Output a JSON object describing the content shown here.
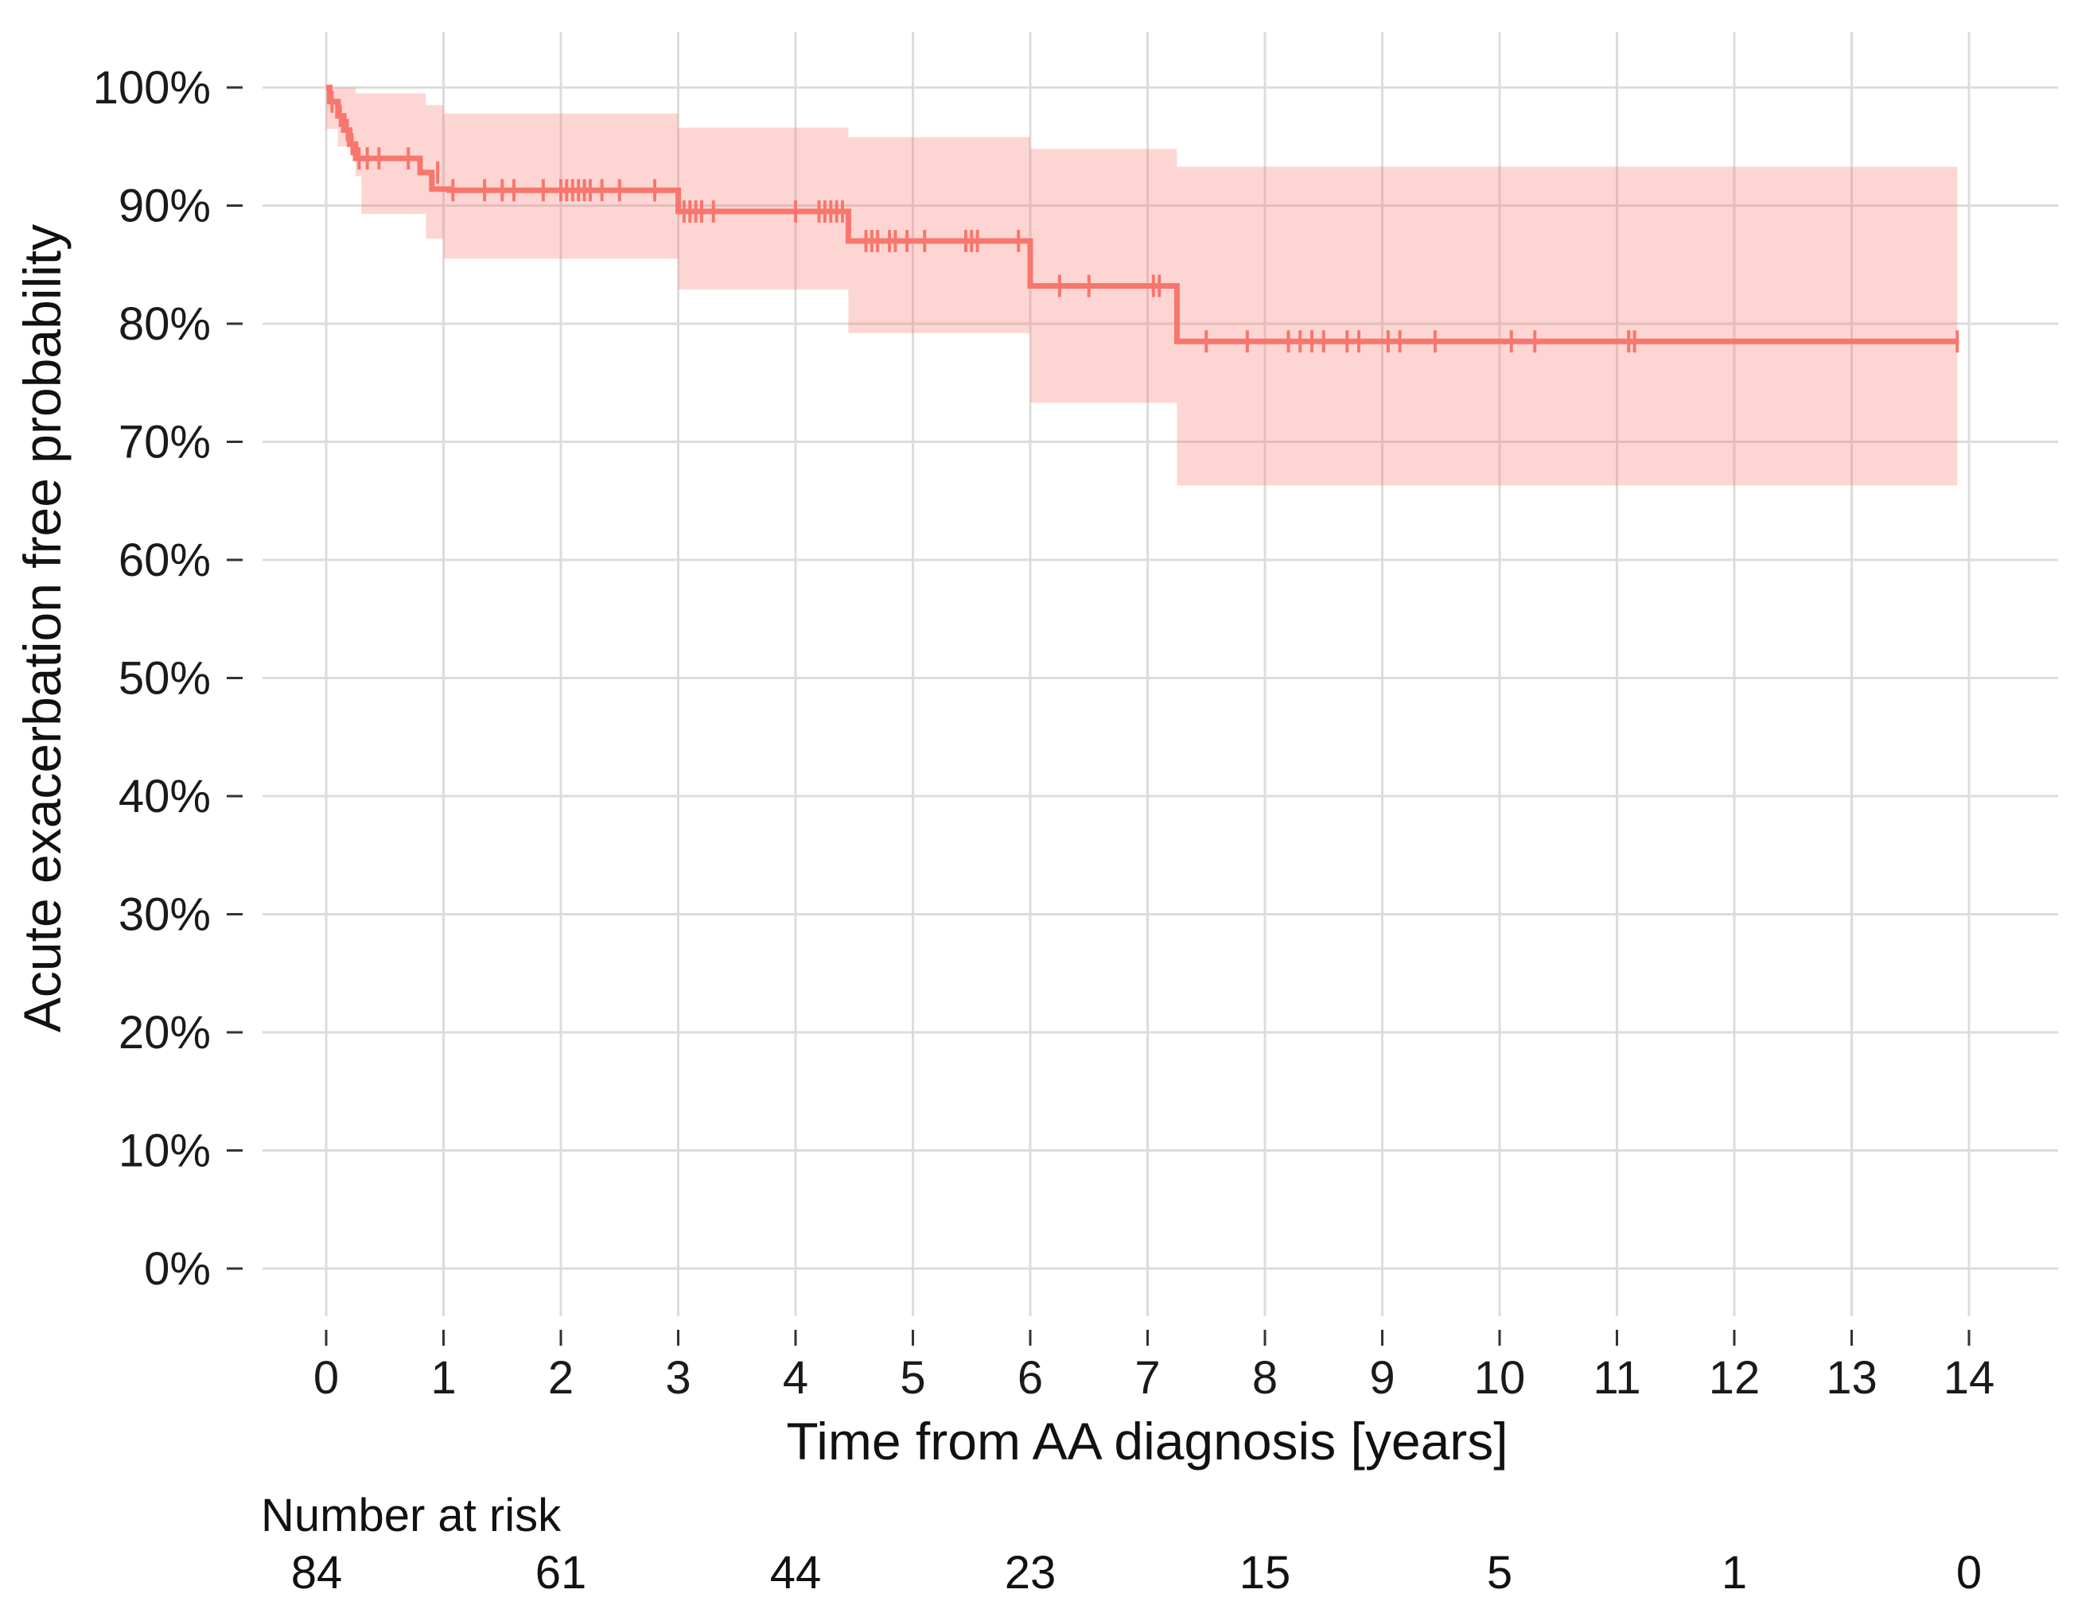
{
  "chart_data": {
    "type": "line",
    "subtype": "kaplan-meier",
    "title": "",
    "xlabel": "Time from AA diagnosis [years]",
    "ylabel": "Acute exacerbation free probability",
    "xlim": [
      0,
      14
    ],
    "ylim": [
      0,
      100
    ],
    "x_ticks": [
      0,
      1,
      2,
      3,
      4,
      5,
      6,
      7,
      8,
      9,
      10,
      11,
      12,
      13,
      14
    ],
    "x_tick_labels": [
      "0",
      "1",
      "2",
      "3",
      "4",
      "5",
      "6",
      "7",
      "8",
      "9",
      "10",
      "11",
      "12",
      "13",
      "14"
    ],
    "y_ticks": [
      0,
      10,
      20,
      30,
      40,
      50,
      60,
      70,
      80,
      90,
      100
    ],
    "y_tick_labels": [
      "0%",
      "10%",
      "20%",
      "30%",
      "40%",
      "50%",
      "60%",
      "70%",
      "80%",
      "90%",
      "100%"
    ],
    "grid": true,
    "series": [
      {
        "name": "Acute exacerbation free probability",
        "color": "#f8766d",
        "ci_color": "#f8766d",
        "step_x": [
          0,
          0.03,
          0.1,
          0.15,
          0.2,
          0.25,
          0.3,
          0.8,
          0.9,
          1.05,
          3.0,
          4.45,
          6.0,
          7.25,
          13.9
        ],
        "step_y": [
          100,
          98.8,
          97.6,
          96.4,
          95.2,
          94.0,
          94.0,
          92.8,
          91.4,
          91.3,
          89.5,
          87.0,
          83.2,
          78.5,
          78.5
        ],
        "ci_x": [
          0,
          0.1,
          0.25,
          0.3,
          0.85,
          1.0,
          3.0,
          4.45,
          6.0,
          7.25,
          13.9
        ],
        "ci_upper": [
          100,
          100,
          99.5,
          99.5,
          98.5,
          97.8,
          96.6,
          95.8,
          94.8,
          93.3,
          93.3
        ],
        "ci_lower": [
          96.5,
          95,
          92.5,
          89.3,
          87.2,
          85.5,
          82.9,
          79.2,
          73.3,
          66.3,
          66.3
        ],
        "censor_x": [
          0.05,
          0.12,
          0.18,
          0.22,
          0.28,
          0.35,
          0.45,
          0.7,
          0.95,
          1.08,
          1.35,
          1.5,
          1.6,
          1.85,
          2.0,
          2.05,
          2.1,
          2.15,
          2.2,
          2.25,
          2.35,
          2.5,
          2.8,
          3.05,
          3.1,
          3.15,
          3.2,
          3.3,
          4.0,
          4.2,
          4.25,
          4.3,
          4.35,
          4.4,
          4.6,
          4.65,
          4.7,
          4.8,
          4.85,
          4.95,
          5.1,
          5.45,
          5.5,
          5.55,
          5.9,
          6.25,
          6.5,
          7.05,
          7.1,
          7.5,
          7.85,
          8.2,
          8.3,
          8.4,
          8.5,
          8.7,
          8.8,
          9.05,
          9.15,
          9.45,
          10.1,
          10.3,
          11.1,
          11.15,
          13.9
        ],
        "censor_y": [
          98.8,
          97.6,
          96.4,
          95.2,
          94.0,
          94.0,
          94.0,
          94.0,
          92.8,
          91.3,
          91.3,
          91.3,
          91.3,
          91.3,
          91.3,
          91.3,
          91.3,
          91.3,
          91.3,
          91.3,
          91.3,
          91.3,
          91.3,
          89.5,
          89.5,
          89.5,
          89.5,
          89.5,
          89.5,
          89.5,
          89.5,
          89.5,
          89.5,
          89.5,
          87.0,
          87.0,
          87.0,
          87.0,
          87.0,
          87.0,
          87.0,
          87.0,
          87.0,
          87.0,
          87.0,
          83.2,
          83.2,
          83.2,
          83.2,
          78.5,
          78.5,
          78.5,
          78.5,
          78.5,
          78.5,
          78.5,
          78.5,
          78.5,
          78.5,
          78.5,
          78.5,
          78.5,
          78.5,
          78.5,
          78.5
        ]
      }
    ],
    "risk_table": {
      "title": "Number at risk",
      "times": [
        0,
        2,
        4,
        6,
        8,
        10,
        12,
        14
      ],
      "values": [
        "84",
        "61",
        "44",
        "23",
        "15",
        "5",
        "1",
        "0"
      ]
    }
  }
}
